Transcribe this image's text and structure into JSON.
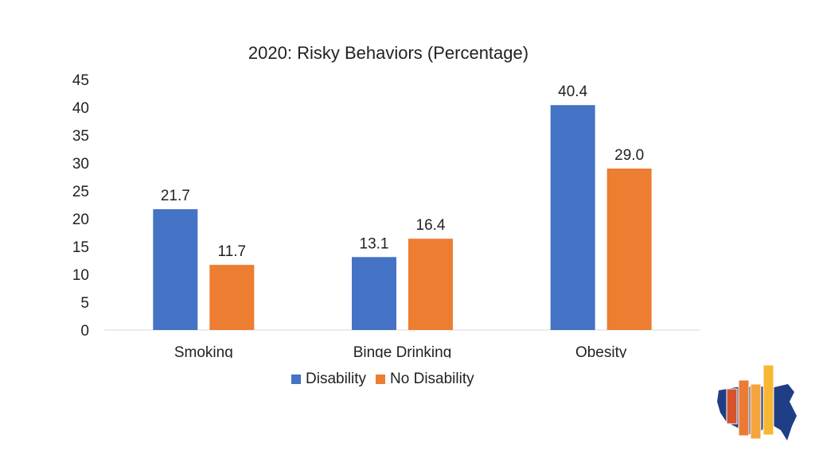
{
  "chart_data": {
    "type": "bar",
    "title": "2020: Risky Behaviors (Percentage)",
    "categories": [
      "Smoking",
      "Binge Drinking",
      "Obesity"
    ],
    "series": [
      {
        "name": "Disability",
        "color": "#4472C4",
        "values": [
          21.7,
          13.1,
          40.4
        ],
        "labels": [
          "21.7",
          "13.1",
          "40.4"
        ]
      },
      {
        "name": "No Disability",
        "color": "#ED7D31",
        "values": [
          11.7,
          16.4,
          29.0
        ],
        "labels": [
          "11.7",
          "16.4",
          "29.0"
        ]
      }
    ],
    "yticks": [
      "0",
      "5",
      "10",
      "15",
      "20",
      "25",
      "30",
      "35",
      "40",
      "45"
    ],
    "ylim": [
      0,
      45
    ],
    "xlabel": "",
    "ylabel": "",
    "legend_position": "bottom",
    "grid": false
  },
  "logo": {
    "name": "us-map-bar-chart-logo"
  }
}
